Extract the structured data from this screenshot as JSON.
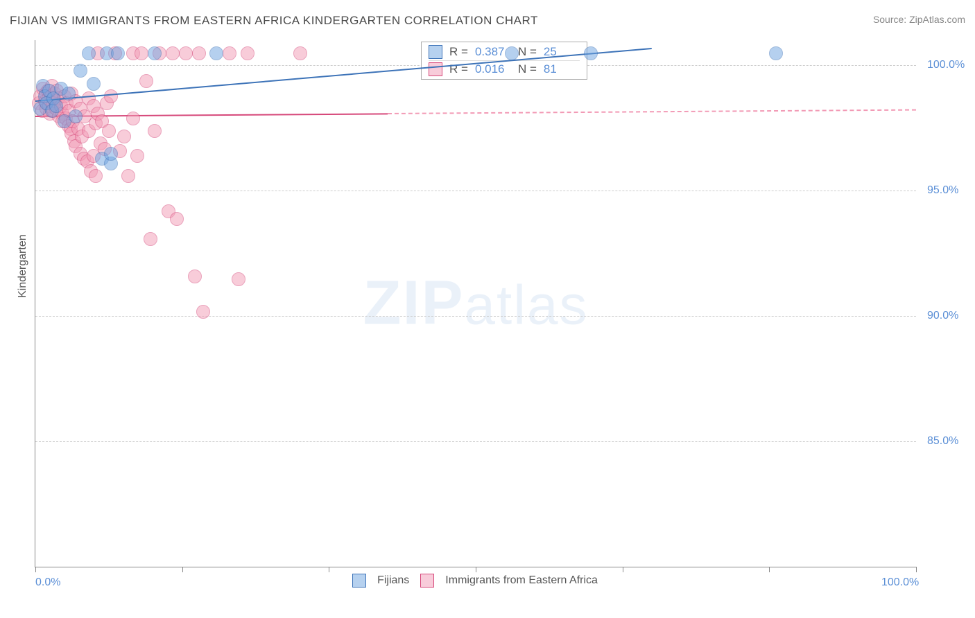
{
  "title": "FIJIAN VS IMMIGRANTS FROM EASTERN AFRICA KINDERGARTEN CORRELATION CHART",
  "source": "Source: ZipAtlas.com",
  "ylabel": "Kindergarten",
  "watermark_bold": "ZIP",
  "watermark_rest": "atlas",
  "chart": {
    "type": "scatter",
    "background_color": "#ffffff",
    "grid_color": "#cccccc",
    "axis_color": "#888888",
    "xlim": [
      0,
      100
    ],
    "ylim": [
      80,
      101
    ],
    "ytick_values": [
      85,
      90,
      95,
      100
    ],
    "ytick_labels": [
      "85.0%",
      "90.0%",
      "95.0%",
      "100.0%"
    ],
    "xtick_values": [
      0,
      100
    ],
    "xtick_labels": [
      "0.0%",
      "100.0%"
    ],
    "xtick_marks": [
      0,
      16.67,
      33.33,
      50,
      66.67,
      83.33,
      100
    ],
    "marker_radius": 9,
    "marker_opacity": 0.5,
    "series": [
      {
        "name": "Fijians",
        "legend_label": "Fijians",
        "fill_color": "#6ea3e0",
        "stroke_color": "#3d73b8",
        "R_value": "0.387",
        "N_value": "25",
        "trend": {
          "x1": 0,
          "y1": 98.6,
          "x2": 70,
          "y2": 100.7,
          "solid_color": "#3d73b8"
        },
        "trend_dash": null,
        "points": [
          {
            "x": 0.5,
            "y": 98.3
          },
          {
            "x": 0.8,
            "y": 99.2
          },
          {
            "x": 1.0,
            "y": 98.8
          },
          {
            "x": 1.2,
            "y": 98.5
          },
          {
            "x": 1.5,
            "y": 99.0
          },
          {
            "x": 1.8,
            "y": 98.2
          },
          {
            "x": 2.0,
            "y": 98.7
          },
          {
            "x": 2.3,
            "y": 98.4
          },
          {
            "x": 2.8,
            "y": 99.1
          },
          {
            "x": 3.2,
            "y": 97.8
          },
          {
            "x": 3.7,
            "y": 98.9
          },
          {
            "x": 4.5,
            "y": 98.0
          },
          {
            "x": 5.0,
            "y": 99.8
          },
          {
            "x": 6.0,
            "y": 100.5
          },
          {
            "x": 6.5,
            "y": 99.3
          },
          {
            "x": 7.5,
            "y": 96.3
          },
          {
            "x": 8.0,
            "y": 100.5
          },
          {
            "x": 8.5,
            "y": 96.1
          },
          {
            "x": 8.5,
            "y": 96.5
          },
          {
            "x": 9.3,
            "y": 100.5
          },
          {
            "x": 13.5,
            "y": 100.5
          },
          {
            "x": 20.5,
            "y": 100.5
          },
          {
            "x": 54.0,
            "y": 100.5
          },
          {
            "x": 63.0,
            "y": 100.5
          },
          {
            "x": 84.0,
            "y": 100.5
          }
        ]
      },
      {
        "name": "Immigrants from Eastern Africa",
        "legend_label": "Immigrants from Eastern Africa",
        "fill_color": "#f29ab5",
        "stroke_color": "#d6487a",
        "R_value": "0.016",
        "N_value": "81",
        "trend": {
          "x1": 0,
          "y1": 98.0,
          "x2": 40,
          "y2": 98.1,
          "solid_color": "#d6487a"
        },
        "trend_dash": {
          "x1": 40,
          "y1": 98.1,
          "x2": 100,
          "y2": 98.25,
          "dash_color": "#f29ab5"
        },
        "points": [
          {
            "x": 0.3,
            "y": 98.5
          },
          {
            "x": 0.5,
            "y": 98.8
          },
          {
            "x": 0.7,
            "y": 98.2
          },
          {
            "x": 0.8,
            "y": 99.1
          },
          {
            "x": 1.0,
            "y": 98.6
          },
          {
            "x": 1.1,
            "y": 98.9
          },
          {
            "x": 1.2,
            "y": 98.3
          },
          {
            "x": 1.3,
            "y": 99.0
          },
          {
            "x": 1.4,
            "y": 98.7
          },
          {
            "x": 1.5,
            "y": 98.4
          },
          {
            "x": 1.6,
            "y": 98.1
          },
          {
            "x": 1.7,
            "y": 98.8
          },
          {
            "x": 1.8,
            "y": 99.2
          },
          {
            "x": 1.9,
            "y": 98.5
          },
          {
            "x": 2.0,
            "y": 98.2
          },
          {
            "x": 2.1,
            "y": 98.9
          },
          {
            "x": 2.2,
            "y": 98.6
          },
          {
            "x": 2.3,
            "y": 98.3
          },
          {
            "x": 2.4,
            "y": 99.0
          },
          {
            "x": 2.5,
            "y": 98.7
          },
          {
            "x": 2.6,
            "y": 98.0
          },
          {
            "x": 2.8,
            "y": 98.4
          },
          {
            "x": 3.0,
            "y": 98.1
          },
          {
            "x": 3.0,
            "y": 97.8
          },
          {
            "x": 3.2,
            "y": 98.8
          },
          {
            "x": 3.4,
            "y": 97.9
          },
          {
            "x": 3.5,
            "y": 98.5
          },
          {
            "x": 3.7,
            "y": 97.6
          },
          {
            "x": 3.8,
            "y": 98.2
          },
          {
            "x": 3.9,
            "y": 97.5
          },
          {
            "x": 4.0,
            "y": 98.9
          },
          {
            "x": 4.0,
            "y": 97.3
          },
          {
            "x": 4.2,
            "y": 97.8
          },
          {
            "x": 4.3,
            "y": 97.0
          },
          {
            "x": 4.5,
            "y": 98.6
          },
          {
            "x": 4.5,
            "y": 96.8
          },
          {
            "x": 4.8,
            "y": 97.5
          },
          {
            "x": 5.0,
            "y": 98.3
          },
          {
            "x": 5.0,
            "y": 96.5
          },
          {
            "x": 5.2,
            "y": 97.2
          },
          {
            "x": 5.4,
            "y": 96.3
          },
          {
            "x": 5.5,
            "y": 98.0
          },
          {
            "x": 5.8,
            "y": 96.2
          },
          {
            "x": 6.0,
            "y": 97.4
          },
          {
            "x": 6.0,
            "y": 98.7
          },
          {
            "x": 6.2,
            "y": 95.8
          },
          {
            "x": 6.5,
            "y": 98.4
          },
          {
            "x": 6.5,
            "y": 96.4
          },
          {
            "x": 6.8,
            "y": 97.7
          },
          {
            "x": 6.8,
            "y": 95.6
          },
          {
            "x": 7.0,
            "y": 98.1
          },
          {
            "x": 7.0,
            "y": 100.5
          },
          {
            "x": 7.3,
            "y": 96.9
          },
          {
            "x": 7.5,
            "y": 97.8
          },
          {
            "x": 7.8,
            "y": 96.7
          },
          {
            "x": 8.0,
            "y": 98.5
          },
          {
            "x": 8.3,
            "y": 97.4
          },
          {
            "x": 8.5,
            "y": 98.8
          },
          {
            "x": 9.0,
            "y": 100.5
          },
          {
            "x": 9.5,
            "y": 96.6
          },
          {
            "x": 10.0,
            "y": 97.2
          },
          {
            "x": 10.5,
            "y": 95.6
          },
          {
            "x": 11.0,
            "y": 97.9
          },
          {
            "x": 11.0,
            "y": 100.5
          },
          {
            "x": 11.5,
            "y": 96.4
          },
          {
            "x": 12.0,
            "y": 100.5
          },
          {
            "x": 12.5,
            "y": 99.4
          },
          {
            "x": 13.0,
            "y": 93.1
          },
          {
            "x": 13.5,
            "y": 97.4
          },
          {
            "x": 14.0,
            "y": 100.5
          },
          {
            "x": 15.0,
            "y": 94.2
          },
          {
            "x": 15.5,
            "y": 100.5
          },
          {
            "x": 16.0,
            "y": 93.9
          },
          {
            "x": 17.0,
            "y": 100.5
          },
          {
            "x": 18.0,
            "y": 91.6
          },
          {
            "x": 18.5,
            "y": 100.5
          },
          {
            "x": 19.0,
            "y": 90.2
          },
          {
            "x": 22.0,
            "y": 100.5
          },
          {
            "x": 23.0,
            "y": 91.5
          },
          {
            "x": 24.0,
            "y": 100.5
          },
          {
            "x": 30.0,
            "y": 100.5
          }
        ]
      }
    ]
  }
}
